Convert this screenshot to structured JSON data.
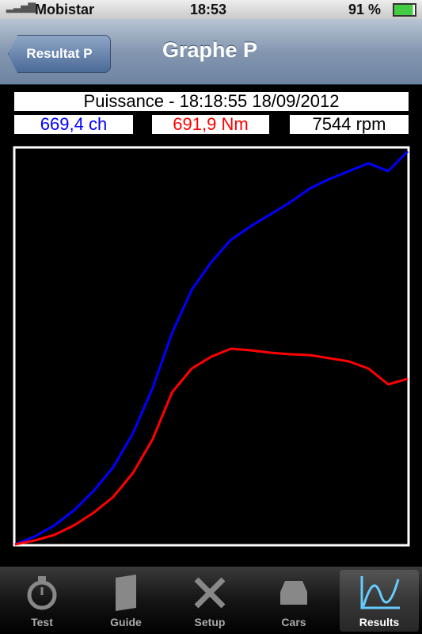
{
  "status_bar": {
    "carrier": "Mobistar",
    "time": "18:53",
    "battery": "91 %"
  },
  "nav": {
    "back": "Resultat P",
    "title": "Graphe P"
  },
  "readouts": {
    "power": "669,4 ch",
    "torque": "691,9 Nm",
    "rpm": "7544 rpm"
  },
  "tabs": [
    "Test",
    "Guide",
    "Setup",
    "Cars",
    "Results"
  ],
  "chart_data": {
    "type": "line",
    "title": "Puissance - 18:18:55 18/09/2012",
    "x": [
      0,
      5,
      10,
      15,
      20,
      25,
      30,
      35,
      40,
      45,
      50,
      55,
      60,
      65,
      70,
      75,
      80,
      85,
      90,
      95,
      100
    ],
    "xlim": [
      0,
      100
    ],
    "ylim": [
      0,
      100
    ],
    "series": [
      {
        "color": "#0000ff",
        "values": [
          0,
          2,
          4.8,
          8.6,
          13.5,
          19.5,
          28,
          39.4,
          53.4,
          64.3,
          71.3,
          76.9,
          80.3,
          83.3,
          86.3,
          89.8,
          92.2,
          94.2,
          96.2,
          94.2,
          99.2
        ]
      },
      {
        "color": "#ff0000",
        "values": [
          0,
          1,
          2.4,
          4.8,
          8,
          12,
          18,
          26.5,
          38.4,
          44.4,
          47.4,
          49.4,
          49,
          48.4,
          48,
          47.8,
          47,
          46.2,
          44.4,
          40.4,
          41.8
        ]
      }
    ]
  }
}
